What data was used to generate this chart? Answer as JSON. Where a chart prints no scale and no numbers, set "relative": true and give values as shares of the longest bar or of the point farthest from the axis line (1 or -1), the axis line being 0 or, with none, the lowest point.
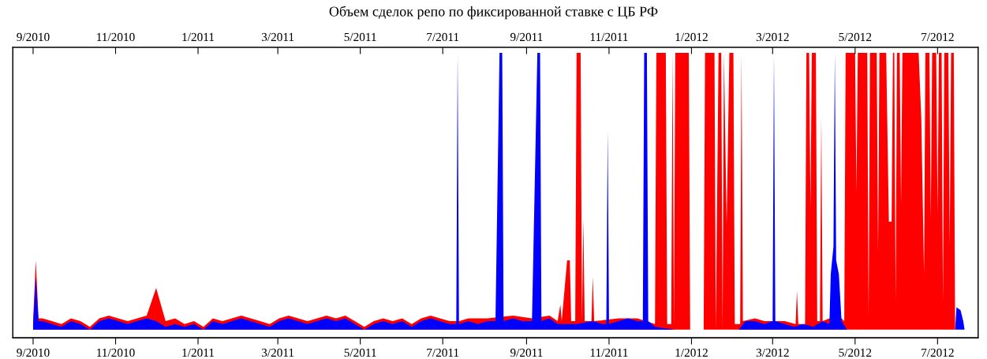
{
  "chart_data": {
    "type": "area",
    "title": "Объем сделок репо по фиксированной ставке с ЦБ РФ",
    "relative": true,
    "tick_labels": "x",
    "grid": false,
    "xlim": [
      "2010-08-17",
      "2012-07-31"
    ],
    "xticks": [
      {
        "value": "2010-09-01",
        "label": "9/2010"
      },
      {
        "value": "2010-11-01",
        "label": "11/2010"
      },
      {
        "value": "2011-01-01",
        "label": "1/2011"
      },
      {
        "value": "2011-03-01",
        "label": "3/2011"
      },
      {
        "value": "2011-05-01",
        "label": "5/2011"
      },
      {
        "value": "2011-07-01",
        "label": "7/2011"
      },
      {
        "value": "2011-09-01",
        "label": "9/2011"
      },
      {
        "value": "2011-11-01",
        "label": "11/2011"
      },
      {
        "value": "2012-01-01",
        "label": "1/2012"
      },
      {
        "value": "2012-03-01",
        "label": "3/2012"
      },
      {
        "value": "2012-05-01",
        "label": "5/2012"
      },
      {
        "value": "2012-07-01",
        "label": "7/2012"
      }
    ],
    "x2lim": [
      "2010-08-17",
      "2012-07-31"
    ],
    "x2ticks": [
      {
        "value": "2010-09-01",
        "label": "9/2010"
      },
      {
        "value": "2010-11-01",
        "label": "11/2010"
      },
      {
        "value": "2011-01-01",
        "label": "1/2011"
      },
      {
        "value": "2011-03-01",
        "label": "3/2011"
      },
      {
        "value": "2011-05-01",
        "label": "5/2011"
      },
      {
        "value": "2011-07-01",
        "label": "7/2011"
      },
      {
        "value": "2011-09-01",
        "label": "9/2011"
      },
      {
        "value": "2011-11-01",
        "label": "11/2011"
      },
      {
        "value": "2012-01-01",
        "label": "1/2012"
      },
      {
        "value": "2012-03-01",
        "label": "3/2012"
      },
      {
        "value": "2012-05-01",
        "label": "5/2012"
      },
      {
        "value": "2012-07-01",
        "label": "7/2012"
      }
    ],
    "series": [
      {
        "color": "#ff0000",
        "x": [
          "2010-09-01",
          "2010-09-03",
          "2010-09-05",
          "2010-09-08",
          "2010-09-15",
          "2010-09-22",
          "2010-09-29",
          "2010-10-06",
          "2010-10-13",
          "2010-10-20",
          "2010-10-27",
          "2010-11-03",
          "2010-11-10",
          "2010-11-17",
          "2010-11-24",
          "2010-12-01",
          "2010-12-08",
          "2010-12-15",
          "2010-12-22",
          "2010-12-29",
          "2011-01-05",
          "2011-01-12",
          "2011-01-19",
          "2011-01-26",
          "2011-02-02",
          "2011-02-09",
          "2011-02-16",
          "2011-02-23",
          "2011-03-02",
          "2011-03-09",
          "2011-03-16",
          "2011-03-23",
          "2011-03-30",
          "2011-04-06",
          "2011-04-13",
          "2011-04-20",
          "2011-04-27",
          "2011-05-04",
          "2011-05-11",
          "2011-05-18",
          "2011-05-25",
          "2011-06-01",
          "2011-06-08",
          "2011-06-15",
          "2011-06-22",
          "2011-06-29",
          "2011-07-06",
          "2011-07-13",
          "2011-07-20",
          "2011-08-03",
          "2011-08-22",
          "2011-09-05",
          "2011-09-18",
          "2011-09-24",
          "2011-09-26",
          "2011-09-27",
          "2011-10-01",
          "2011-10-03",
          "2011-10-04",
          "2011-10-07",
          "2011-10-08",
          "2011-10-11",
          "2011-10-12",
          "2011-10-13",
          "2011-10-14",
          "2011-10-19",
          "2011-10-20",
          "2011-10-21",
          "2011-11-08",
          "2011-11-22",
          "2011-12-05",
          "2011-12-06",
          "2011-12-13",
          "2011-12-14",
          "2011-12-17",
          "2011-12-18",
          "2011-12-19",
          "2011-12-20",
          "2011-12-30",
          "2011-12-31",
          "2012-01-10",
          "2012-01-11",
          "2012-01-18",
          "2012-01-19",
          "2012-01-21",
          "2012-01-23",
          "2012-01-24",
          "2012-01-25",
          "2012-01-27",
          "2012-01-29",
          "2012-02-01",
          "2012-02-02",
          "2012-02-06",
          "2012-02-07",
          "2012-02-08",
          "2012-02-17",
          "2012-02-24",
          "2012-03-10",
          "2012-03-18",
          "2012-03-19",
          "2012-03-20",
          "2012-03-25",
          "2012-03-26",
          "2012-03-28",
          "2012-03-29",
          "2012-03-30",
          "2012-04-02",
          "2012-04-03",
          "2012-04-05",
          "2012-04-06",
          "2012-04-07",
          "2012-04-12",
          "2012-04-21",
          "2012-04-23",
          "2012-04-24",
          "2012-05-01",
          "2012-05-02",
          "2012-05-03",
          "2012-05-10",
          "2012-05-11",
          "2012-05-12",
          "2012-05-17",
          "2012-05-18",
          "2012-05-19",
          "2012-05-24",
          "2012-05-26",
          "2012-05-28",
          "2012-05-29",
          "2012-05-30",
          "2012-05-31",
          "2012-06-01",
          "2012-06-03",
          "2012-06-04",
          "2012-06-05",
          "2012-06-17",
          "2012-06-19",
          "2012-06-21",
          "2012-06-22",
          "2012-06-25",
          "2012-06-26",
          "2012-06-27",
          "2012-06-30",
          "2012-07-01",
          "2012-07-02",
          "2012-07-04",
          "2012-07-05",
          "2012-07-06",
          "2012-07-09",
          "2012-07-10",
          "2012-07-11",
          "2012-07-13",
          "2012-07-14"
        ],
        "values": [
          0.03,
          0.25,
          0.04,
          0.04,
          0.03,
          0.02,
          0.04,
          0.03,
          0.01,
          0.04,
          0.05,
          0.04,
          0.03,
          0.04,
          0.05,
          0.15,
          0.03,
          0.04,
          0.02,
          0.03,
          0.01,
          0.04,
          0.03,
          0.04,
          0.05,
          0.04,
          0.03,
          0.02,
          0.04,
          0.05,
          0.04,
          0.03,
          0.04,
          0.05,
          0.04,
          0.05,
          0.03,
          0.01,
          0.03,
          0.04,
          0.03,
          0.04,
          0.02,
          0.04,
          0.05,
          0.04,
          0.03,
          0.03,
          0.04,
          0.04,
          0.05,
          0.04,
          0.05,
          0.03,
          0.09,
          0.03,
          0.25,
          0.25,
          0.03,
          0.03,
          1,
          1,
          0.03,
          0.4,
          0.03,
          0.03,
          0.19,
          0.03,
          0.04,
          0.04,
          0.02,
          1,
          1,
          0.02,
          0.02,
          1,
          0.02,
          1,
          1,
          0,
          0,
          1,
          1,
          0,
          1,
          1,
          0,
          1,
          0.38,
          1,
          1,
          0.02,
          0.02,
          1,
          0.03,
          0.04,
          0.03,
          0.03,
          0.02,
          0.14,
          0.02,
          0.02,
          1,
          1,
          0.44,
          1,
          1,
          0.03,
          0.03,
          0.77,
          0.03,
          0.04,
          0.04,
          0.03,
          1,
          1,
          0.5,
          1,
          1,
          0.05,
          1,
          1,
          0.28,
          1,
          1,
          0.39,
          0.39,
          1,
          1,
          0.1,
          1,
          1,
          0.45,
          1,
          1,
          0.76,
          0.2,
          1,
          1,
          0.4,
          1,
          1,
          0.42,
          1,
          1,
          0.1,
          1,
          1,
          0.3,
          1,
          1,
          0
        ]
      },
      {
        "color": "#0000ff",
        "x": [
          "2010-09-01",
          "2010-09-03",
          "2010-09-05",
          "2010-09-08",
          "2010-09-15",
          "2010-09-22",
          "2010-09-29",
          "2010-10-06",
          "2010-10-13",
          "2010-10-20",
          "2010-10-27",
          "2010-11-03",
          "2010-11-10",
          "2010-11-17",
          "2010-11-24",
          "2010-12-01",
          "2010-12-08",
          "2010-12-15",
          "2010-12-22",
          "2010-12-29",
          "2011-01-05",
          "2011-01-12",
          "2011-01-19",
          "2011-01-26",
          "2011-02-02",
          "2011-02-09",
          "2011-02-16",
          "2011-02-23",
          "2011-03-02",
          "2011-03-09",
          "2011-03-16",
          "2011-03-23",
          "2011-03-30",
          "2011-04-06",
          "2011-04-13",
          "2011-04-20",
          "2011-04-27",
          "2011-05-04",
          "2011-05-11",
          "2011-05-18",
          "2011-05-25",
          "2011-06-01",
          "2011-06-08",
          "2011-06-15",
          "2011-06-22",
          "2011-06-29",
          "2011-07-06",
          "2011-07-11",
          "2011-07-12",
          "2011-07-13",
          "2011-07-20",
          "2011-07-27",
          "2011-08-03",
          "2011-08-09",
          "2011-08-12",
          "2011-08-14",
          "2011-08-15",
          "2011-08-22",
          "2011-08-29",
          "2011-09-05",
          "2011-09-09",
          "2011-09-11",
          "2011-09-12",
          "2011-09-18",
          "2011-09-24",
          "2011-10-01",
          "2011-10-08",
          "2011-10-20",
          "2011-10-27",
          "2011-10-30",
          "2011-10-31",
          "2011-11-01",
          "2011-11-08",
          "2011-11-15",
          "2011-11-22",
          "2011-11-26",
          "2011-11-27",
          "2011-11-29",
          "2011-11-30",
          "2011-12-05",
          "2011-12-20",
          "2012-01-05",
          "2012-01-20",
          "2012-02-05",
          "2012-02-10",
          "2012-02-17",
          "2012-02-24",
          "2012-03-01",
          "2012-03-02",
          "2012-03-03",
          "2012-03-10",
          "2012-03-17",
          "2012-03-24",
          "2012-03-31",
          "2012-04-07",
          "2012-04-12",
          "2012-04-13",
          "2012-04-15",
          "2012-04-16",
          "2012-04-17",
          "2012-04-19",
          "2012-04-21",
          "2012-04-25",
          "2012-07-13",
          "2012-07-14",
          "2012-07-15",
          "2012-07-18",
          "2012-07-20",
          "2012-07-21"
        ],
        "values": [
          0.02,
          0.19,
          0.03,
          0.03,
          0.02,
          0.01,
          0.03,
          0.02,
          0,
          0.03,
          0.04,
          0.03,
          0.02,
          0.03,
          0.04,
          0.03,
          0.01,
          0.02,
          0.01,
          0.02,
          0,
          0.03,
          0.02,
          0.03,
          0.04,
          0.03,
          0.02,
          0.01,
          0.03,
          0.04,
          0.03,
          0.02,
          0.03,
          0.04,
          0.03,
          0.04,
          0.02,
          0,
          0.02,
          0.03,
          0.02,
          0.03,
          0.01,
          0.03,
          0.04,
          0.03,
          0.02,
          0.02,
          1,
          0.02,
          0.03,
          0.02,
          0.03,
          0.03,
          1,
          1,
          0.03,
          0.04,
          0.03,
          0.03,
          1,
          1,
          0.03,
          0.04,
          0.02,
          0.02,
          0.02,
          0.03,
          0.02,
          0.02,
          0.72,
          0.02,
          0.03,
          0.04,
          0.03,
          0.03,
          1,
          1,
          0.03,
          0.01,
          0,
          0,
          0,
          0,
          0.03,
          0.03,
          0.02,
          0.03,
          1,
          0.03,
          0.02,
          0.01,
          0.02,
          0.01,
          0.03,
          0.02,
          0.2,
          0.3,
          1,
          0.25,
          0.2,
          0.03,
          0,
          0,
          0,
          0.08,
          0.07,
          0.03,
          0
        ]
      }
    ]
  }
}
